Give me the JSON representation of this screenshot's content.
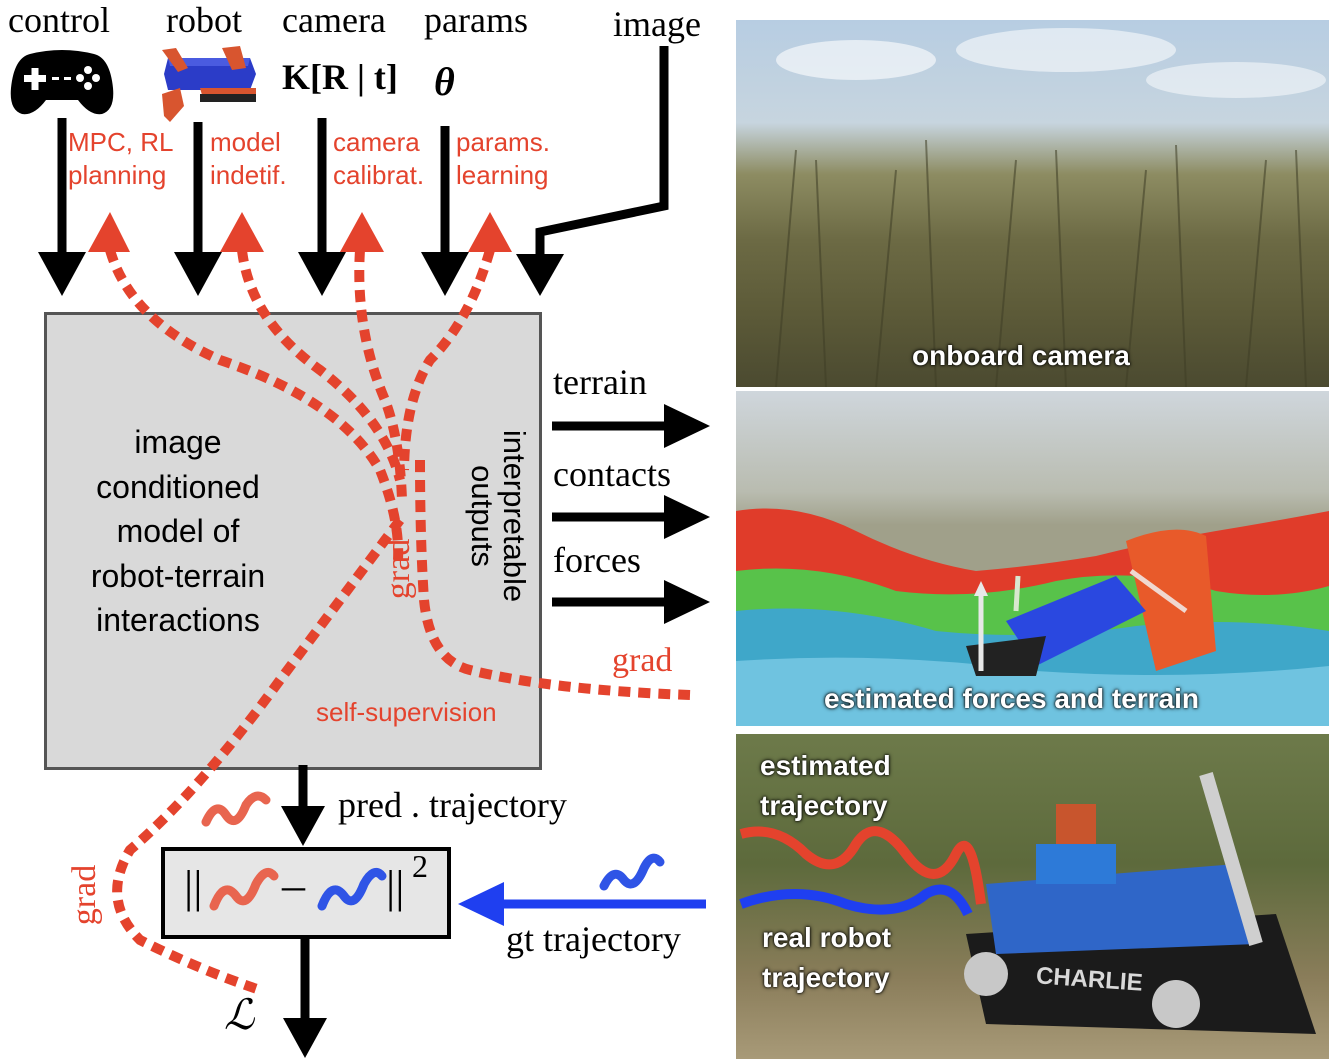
{
  "inputs": {
    "control": "control",
    "robot": "robot",
    "camera": "camera",
    "params": "params",
    "image": "image",
    "camera_symbol": "K[R | t]",
    "params_symbol": "θ"
  },
  "tasks": {
    "mpc_line1": "MPC, RL",
    "mpc_line2": "planning",
    "model_line1": "model",
    "model_line2": "indetif.",
    "calib_line1": "camera",
    "calib_line2": "calibrat.",
    "params_line1": "params.",
    "params_line2": "learning"
  },
  "model_box": {
    "line1": "image",
    "line2": "conditioned",
    "line3": "model of",
    "line4": "robot-terrain",
    "line5": "interactions",
    "side_line1": "interpretable",
    "side_line2": "outputs"
  },
  "outputs": {
    "terrain": "terrain",
    "contacts": "contacts",
    "forces": "forces"
  },
  "gradient": {
    "grad_inner": "grad",
    "grad_right": "grad",
    "grad_left": "grad",
    "self_supervision": "self-supervision"
  },
  "loss": {
    "pred_trajectory": "pred . trajectory",
    "gt_trajectory": "gt trajectory",
    "norm_left": "||",
    "minus": "–",
    "norm_right": "||",
    "exponent": "2",
    "symbol": "ℒ"
  },
  "photos": {
    "camera_caption": "onboard camera",
    "forces_caption": "estimated forces and terrain",
    "est_traj_line1": "estimated",
    "est_traj_line2": "trajectory",
    "real_traj_line1": "real robot",
    "real_traj_line2": "trajectory",
    "robot_name": "CHARLIE"
  },
  "colors": {
    "gradient_red": "#e4432d",
    "gt_blue": "#1f3ff0",
    "box_gray": "#d9d9d9"
  }
}
